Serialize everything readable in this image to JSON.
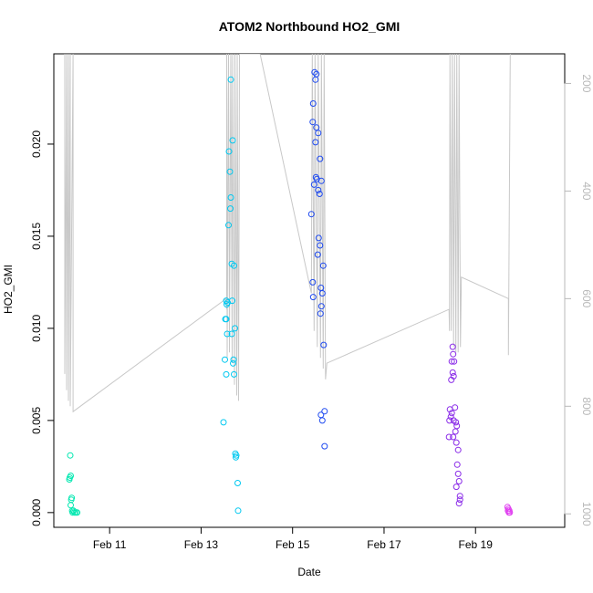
{
  "chart_data": {
    "type": "scatter",
    "title": "ATOM2 Northbound HO2_GMI",
    "xlabel": "Date",
    "ylabel": "HO2_GMI",
    "xlim": [
      9.78,
      20.95
    ],
    "ylim": [
      -0.0008,
      0.0249
    ],
    "x_ticks": [
      {
        "v": 11,
        "label": "Feb 11"
      },
      {
        "v": 13,
        "label": "Feb 13"
      },
      {
        "v": 15,
        "label": "Feb 15"
      },
      {
        "v": 17,
        "label": "Feb 17"
      },
      {
        "v": 19,
        "label": "Feb 19"
      }
    ],
    "y_ticks": [
      {
        "v": 0.0,
        "label": "0.000"
      },
      {
        "v": 0.005,
        "label": "0.005"
      },
      {
        "v": 0.01,
        "label": "0.010"
      },
      {
        "v": 0.015,
        "label": "0.015"
      },
      {
        "v": 0.02,
        "label": "0.020"
      }
    ],
    "y2_ticks": [
      {
        "v": 200,
        "label": "200"
      },
      {
        "v": 400,
        "label": "400"
      },
      {
        "v": 600,
        "label": "600"
      },
      {
        "v": 800,
        "label": "800"
      },
      {
        "v": 1000,
        "label": "1000"
      }
    ],
    "y2lim": [
      1025,
      145
    ],
    "grid": false,
    "color_scale": "rainbow by date (green - cyan - blue - purple - magenta)",
    "series": [
      {
        "color": "#00e8b0",
        "points": [
          [
            10.14,
            0.0031
          ],
          [
            10.13,
            0.0019
          ],
          [
            10.15,
            0.002
          ],
          [
            10.12,
            0.0018
          ],
          [
            10.17,
            0.0008
          ],
          [
            10.16,
            0.0007
          ],
          [
            10.15,
            0.0004
          ],
          [
            10.18,
            0.0001
          ],
          [
            10.19,
            0.0
          ],
          [
            10.21,
            0.0001
          ],
          [
            10.23,
            0.0
          ],
          [
            10.26,
            0.0
          ],
          [
            10.29,
            0.0
          ]
        ]
      },
      {
        "color": "#00c8f0",
        "points": [
          [
            13.65,
            0.0235
          ],
          [
            13.69,
            0.0202
          ],
          [
            13.61,
            0.0196
          ],
          [
            13.63,
            0.0185
          ],
          [
            13.65,
            0.0171
          ],
          [
            13.64,
            0.0165
          ],
          [
            13.6,
            0.0156
          ],
          [
            13.67,
            0.0135
          ],
          [
            13.72,
            0.0134
          ],
          [
            13.55,
            0.0115
          ],
          [
            13.58,
            0.0114
          ],
          [
            13.68,
            0.0115
          ],
          [
            13.56,
            0.0113
          ],
          [
            13.53,
            0.0105
          ],
          [
            13.55,
            0.0105
          ],
          [
            13.57,
            0.0097
          ],
          [
            13.67,
            0.0097
          ],
          [
            13.74,
            0.01
          ],
          [
            13.52,
            0.0083
          ],
          [
            13.71,
            0.0083
          ],
          [
            13.7,
            0.0081
          ],
          [
            13.55,
            0.0075
          ],
          [
            13.72,
            0.0075
          ],
          [
            13.49,
            0.0049
          ],
          [
            13.75,
            0.0032
          ],
          [
            13.77,
            0.0031
          ],
          [
            13.76,
            0.003
          ],
          [
            13.8,
            0.0016
          ],
          [
            13.81,
            0.0001
          ]
        ]
      },
      {
        "color": "#1e4af0",
        "points": [
          [
            15.48,
            0.0239
          ],
          [
            15.52,
            0.0238
          ],
          [
            15.5,
            0.0235
          ],
          [
            15.45,
            0.0222
          ],
          [
            15.44,
            0.0212
          ],
          [
            15.52,
            0.0209
          ],
          [
            15.56,
            0.0206
          ],
          [
            15.5,
            0.0201
          ],
          [
            15.6,
            0.0192
          ],
          [
            15.51,
            0.0182
          ],
          [
            15.53,
            0.0181
          ],
          [
            15.63,
            0.018
          ],
          [
            15.47,
            0.0178
          ],
          [
            15.56,
            0.0175
          ],
          [
            15.59,
            0.0173
          ],
          [
            15.41,
            0.0162
          ],
          [
            15.57,
            0.0149
          ],
          [
            15.6,
            0.0145
          ],
          [
            15.55,
            0.014
          ],
          [
            15.67,
            0.0134
          ],
          [
            15.44,
            0.0125
          ],
          [
            15.62,
            0.0122
          ],
          [
            15.65,
            0.0119
          ],
          [
            15.45,
            0.0117
          ],
          [
            15.63,
            0.0112
          ],
          [
            15.61,
            0.0108
          ],
          [
            15.68,
            0.0091
          ],
          [
            15.7,
            0.0055
          ],
          [
            15.62,
            0.0053
          ],
          [
            15.65,
            0.005
          ],
          [
            15.7,
            0.0036
          ]
        ]
      },
      {
        "color": "#8a2be8",
        "points": [
          [
            18.5,
            0.009
          ],
          [
            18.51,
            0.0086
          ],
          [
            18.48,
            0.0082
          ],
          [
            18.53,
            0.0082
          ],
          [
            18.5,
            0.0076
          ],
          [
            18.52,
            0.0074
          ],
          [
            18.47,
            0.0072
          ],
          [
            18.44,
            0.0056
          ],
          [
            18.55,
            0.0057
          ],
          [
            18.48,
            0.0054
          ],
          [
            18.46,
            0.0052
          ],
          [
            18.43,
            0.005
          ],
          [
            18.52,
            0.005
          ],
          [
            18.57,
            0.0049
          ],
          [
            18.59,
            0.0047
          ],
          [
            18.56,
            0.0044
          ],
          [
            18.42,
            0.0041
          ],
          [
            18.51,
            0.0041
          ],
          [
            18.58,
            0.0038
          ],
          [
            18.62,
            0.0034
          ],
          [
            18.6,
            0.0026
          ],
          [
            18.62,
            0.0021
          ],
          [
            18.64,
            0.0017
          ],
          [
            18.58,
            0.0014
          ],
          [
            18.66,
            0.0009
          ],
          [
            18.66,
            0.0007
          ],
          [
            18.64,
            0.0005
          ]
        ]
      },
      {
        "color": "#e040f0",
        "points": [
          [
            19.7,
            0.0003
          ],
          [
            19.72,
            0.0002
          ],
          [
            19.71,
            0.0001
          ],
          [
            19.74,
            0.0001
          ],
          [
            19.73,
            0.0
          ],
          [
            19.75,
            0.0
          ]
        ]
      }
    ],
    "altitude_line": {
      "color": "#c8c8c8",
      "axis": "right",
      "points": [
        [
          10.02,
          145
        ],
        [
          10.02,
          740
        ],
        [
          10.06,
          145
        ],
        [
          10.06,
          770
        ],
        [
          10.1,
          145
        ],
        [
          10.1,
          790
        ],
        [
          10.14,
          145
        ],
        [
          10.14,
          800
        ],
        [
          10.2,
          145
        ],
        [
          10.2,
          810
        ],
        [
          13.55,
          600
        ],
        [
          13.56,
          620
        ],
        [
          13.56,
          145
        ],
        [
          13.57,
          710
        ],
        [
          13.6,
          145
        ],
        [
          13.62,
          700
        ],
        [
          13.65,
          145
        ],
        [
          13.68,
          720
        ],
        [
          13.69,
          145
        ],
        [
          13.73,
          760
        ],
        [
          13.74,
          145
        ],
        [
          13.78,
          780
        ],
        [
          13.79,
          145
        ],
        [
          13.82,
          790
        ],
        [
          13.84,
          145
        ],
        [
          14.29,
          145
        ],
        [
          15.41,
          590
        ],
        [
          15.43,
          145
        ],
        [
          15.47,
          660
        ],
        [
          15.49,
          145
        ],
        [
          15.54,
          690
        ],
        [
          15.56,
          145
        ],
        [
          15.61,
          710
        ],
        [
          15.63,
          145
        ],
        [
          15.67,
          730
        ],
        [
          15.69,
          145
        ],
        [
          15.72,
          750
        ],
        [
          15.75,
          720
        ],
        [
          18.42,
          620
        ],
        [
          18.43,
          660
        ],
        [
          18.44,
          145
        ],
        [
          18.47,
          660
        ],
        [
          18.49,
          145
        ],
        [
          18.52,
          690
        ],
        [
          18.54,
          145
        ],
        [
          18.57,
          700
        ],
        [
          18.59,
          145
        ],
        [
          18.62,
          700
        ],
        [
          18.64,
          145
        ],
        [
          18.67,
          690
        ],
        [
          18.69,
          560
        ],
        [
          19.72,
          600
        ],
        [
          19.72,
          705
        ],
        [
          19.76,
          145
        ]
      ]
    }
  }
}
